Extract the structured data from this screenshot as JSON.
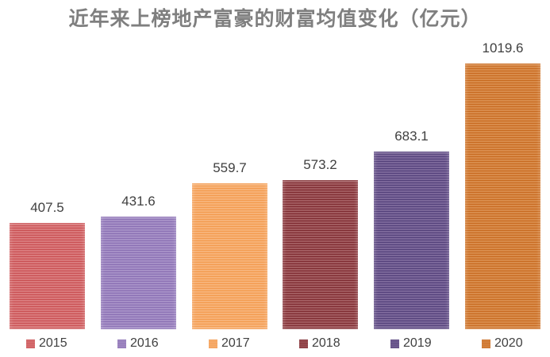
{
  "title": "近年来上榜地产富豪的财富均值变化（亿元）",
  "chart_data": {
    "type": "bar",
    "title": "近年来上榜地产富豪的财富均值变化（亿元）",
    "categories": [
      "2015",
      "2016",
      "2017",
      "2018",
      "2019",
      "2020"
    ],
    "values": [
      407.5,
      431.6,
      559.7,
      573.2,
      683.1,
      1019.6
    ],
    "data_labels": [
      "407.5",
      "431.6",
      "559.7",
      "573.2",
      "683.1",
      "1019.6"
    ],
    "xlabel": "",
    "ylabel": "",
    "ylim": [
      0,
      1019.6
    ],
    "grid": false,
    "legend_position": "bottom",
    "colors": [
      "#d9797b",
      "#a58fc6",
      "#f7b277",
      "#a15a5e",
      "#7a6699",
      "#d88b4a"
    ],
    "stripe_colors": [
      "#c94f52",
      "#8a6fb3",
      "#f39a4d",
      "#7e2a30",
      "#53407a",
      "#c86a20"
    ]
  },
  "legend": {
    "items": [
      {
        "label": "2015"
      },
      {
        "label": "2016"
      },
      {
        "label": "2017"
      },
      {
        "label": "2018"
      },
      {
        "label": "2019"
      },
      {
        "label": "2020"
      }
    ]
  }
}
